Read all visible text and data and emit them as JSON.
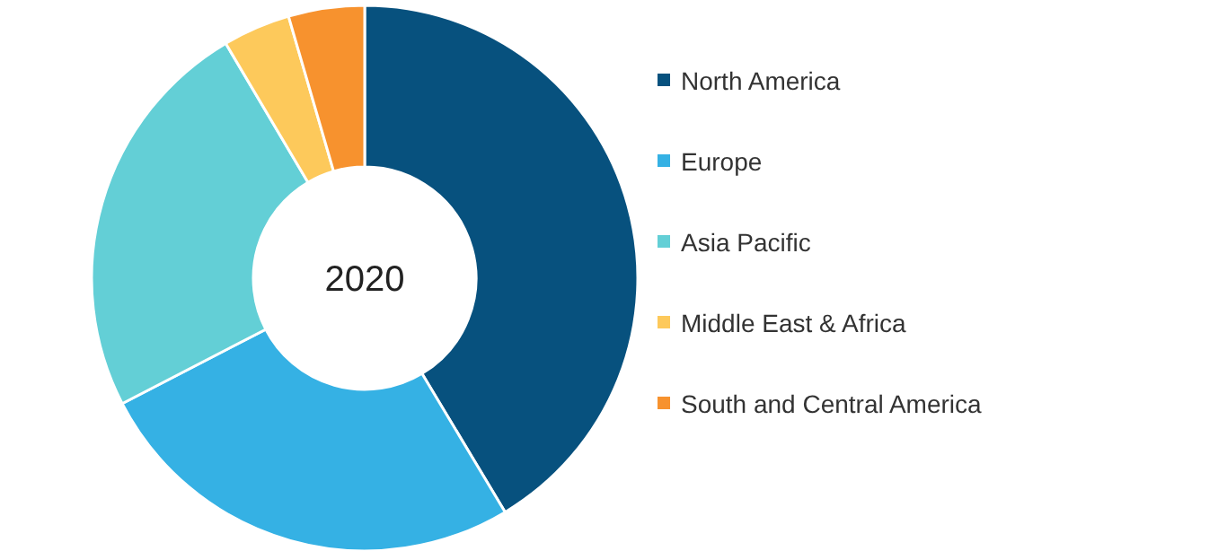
{
  "chart_data": {
    "type": "donut",
    "title": "2020",
    "categories": [
      "North America",
      "Europe",
      "Asia Pacific",
      "Middle East & Africa",
      "South and Central America"
    ],
    "values": [
      41.4,
      26,
      24.1,
      4,
      4.5
    ],
    "colors": [
      "#07517e",
      "#35b1e4",
      "#63cfd6",
      "#fdc95b",
      "#f7922e"
    ],
    "legend": "right"
  }
}
